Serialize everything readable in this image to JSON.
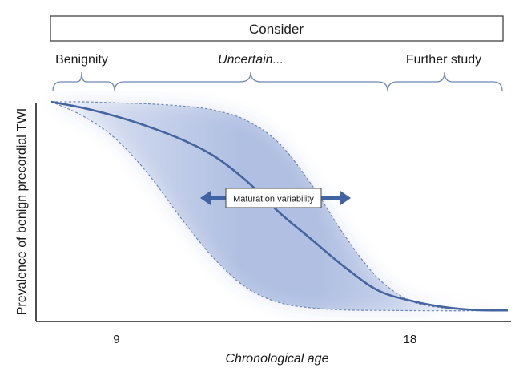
{
  "chart_data": {
    "type": "line",
    "header_box": "Consider",
    "phases": [
      {
        "label": "Benignity",
        "italic": false
      },
      {
        "label": "Uncertain...",
        "italic": true
      },
      {
        "label": "Further study",
        "italic": false
      }
    ],
    "xlabel": "Chronological age",
    "ylabel": "Prevalence of benign precordial TWI",
    "x_ticks": [
      9,
      18
    ],
    "annotation": "Maturation variability",
    "series": [
      {
        "role": "central",
        "style": "solid",
        "x": [
          7,
          8,
          9,
          10,
          11,
          12,
          13,
          14,
          15,
          16,
          17,
          18,
          19,
          20,
          21
        ],
        "y": [
          100,
          97,
          93,
          88,
          82,
          74,
          62,
          47,
          34,
          21,
          10,
          5,
          2,
          0.5,
          0.3
        ]
      },
      {
        "role": "early",
        "style": "dashed",
        "x": [
          7,
          8,
          9,
          10,
          11,
          12,
          13,
          14,
          15,
          16,
          17,
          18,
          19,
          20,
          21
        ],
        "y": [
          100,
          93,
          82,
          65,
          44,
          25,
          11,
          4,
          1.5,
          0.5,
          0.3,
          0.2,
          0.1,
          0.1,
          0.1
        ]
      },
      {
        "role": "late",
        "style": "dashed",
        "x": [
          7,
          8,
          9,
          10,
          11,
          12,
          13,
          14,
          15,
          16,
          17,
          18,
          19,
          20,
          21
        ],
        "y": [
          100,
          100,
          99.5,
          99,
          98,
          96,
          91,
          80,
          60,
          36,
          16,
          5,
          1.5,
          0.5,
          0.3
        ]
      }
    ],
    "xlim": [
      7,
      21
    ],
    "ylim": [
      0,
      100
    ],
    "colors": {
      "central": "#44659f",
      "dashed": "#6e87b5",
      "band": "#3f64b8",
      "arrow": "#3f63a3",
      "box_border": "#333333"
    }
  }
}
